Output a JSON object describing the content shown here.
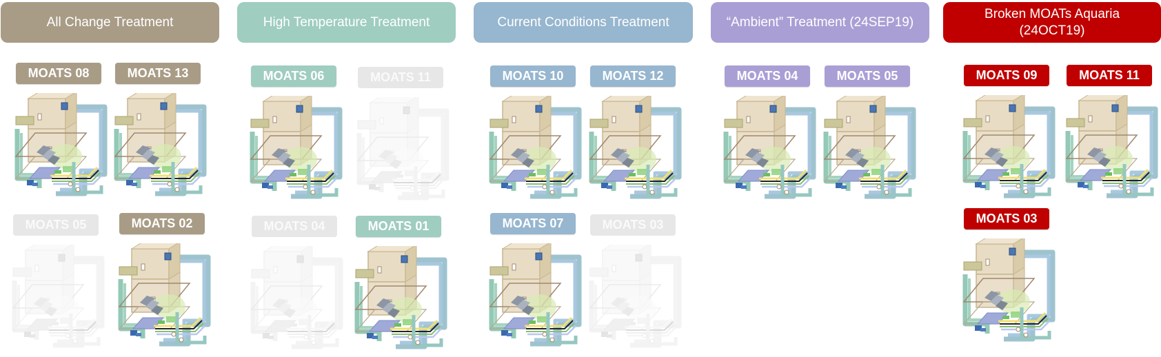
{
  "colors": {
    "all_change": "#a99c86",
    "high_temperature": "#9fcdbf",
    "current_conditions": "#97b6cf",
    "ambient": "#a99fd5",
    "broken": "#c00000",
    "faded": "#e7e7e7"
  },
  "treatments": [
    {
      "title": "All Change Treatment",
      "color_key": "all_change"
    },
    {
      "title": "High Temperature Treatment",
      "color_key": "high_temperature"
    },
    {
      "title": "Current Conditions Treatment",
      "color_key": "current_conditions"
    },
    {
      "title": "“Ambient” Treatment (24SEP19)",
      "color_key": "ambient"
    },
    {
      "title": "Broken MOATs Aquaria (24OCT19)",
      "color_key": "broken"
    }
  ],
  "units": [
    {
      "label": "MOATS 08",
      "group": "all_change",
      "active": true
    },
    {
      "label": "MOATS 13",
      "group": "all_change",
      "active": true
    },
    {
      "label": "MOATS 05",
      "group": "all_change",
      "active": false
    },
    {
      "label": "MOATS 02",
      "group": "all_change",
      "active": true
    },
    {
      "label": "MOATS 06",
      "group": "high_temperature",
      "active": true
    },
    {
      "label": "MOATS 11",
      "group": "high_temperature",
      "active": false
    },
    {
      "label": "MOATS 04",
      "group": "high_temperature",
      "active": false
    },
    {
      "label": "MOATS 01",
      "group": "high_temperature",
      "active": true
    },
    {
      "label": "MOATS 10",
      "group": "current_conditions",
      "active": true
    },
    {
      "label": "MOATS 12",
      "group": "current_conditions",
      "active": true
    },
    {
      "label": "MOATS 07",
      "group": "current_conditions",
      "active": true
    },
    {
      "label": "MOATS 03",
      "group": "current_conditions",
      "active": false
    },
    {
      "label": "MOATS 04",
      "group": "ambient",
      "active": true
    },
    {
      "label": "MOATS 05",
      "group": "ambient",
      "active": true
    },
    {
      "label": "MOATS 09",
      "group": "broken",
      "active": true
    },
    {
      "label": "MOATS 11",
      "group": "broken",
      "active": true
    },
    {
      "label": "MOATS 03",
      "group": "broken",
      "active": true
    }
  ]
}
